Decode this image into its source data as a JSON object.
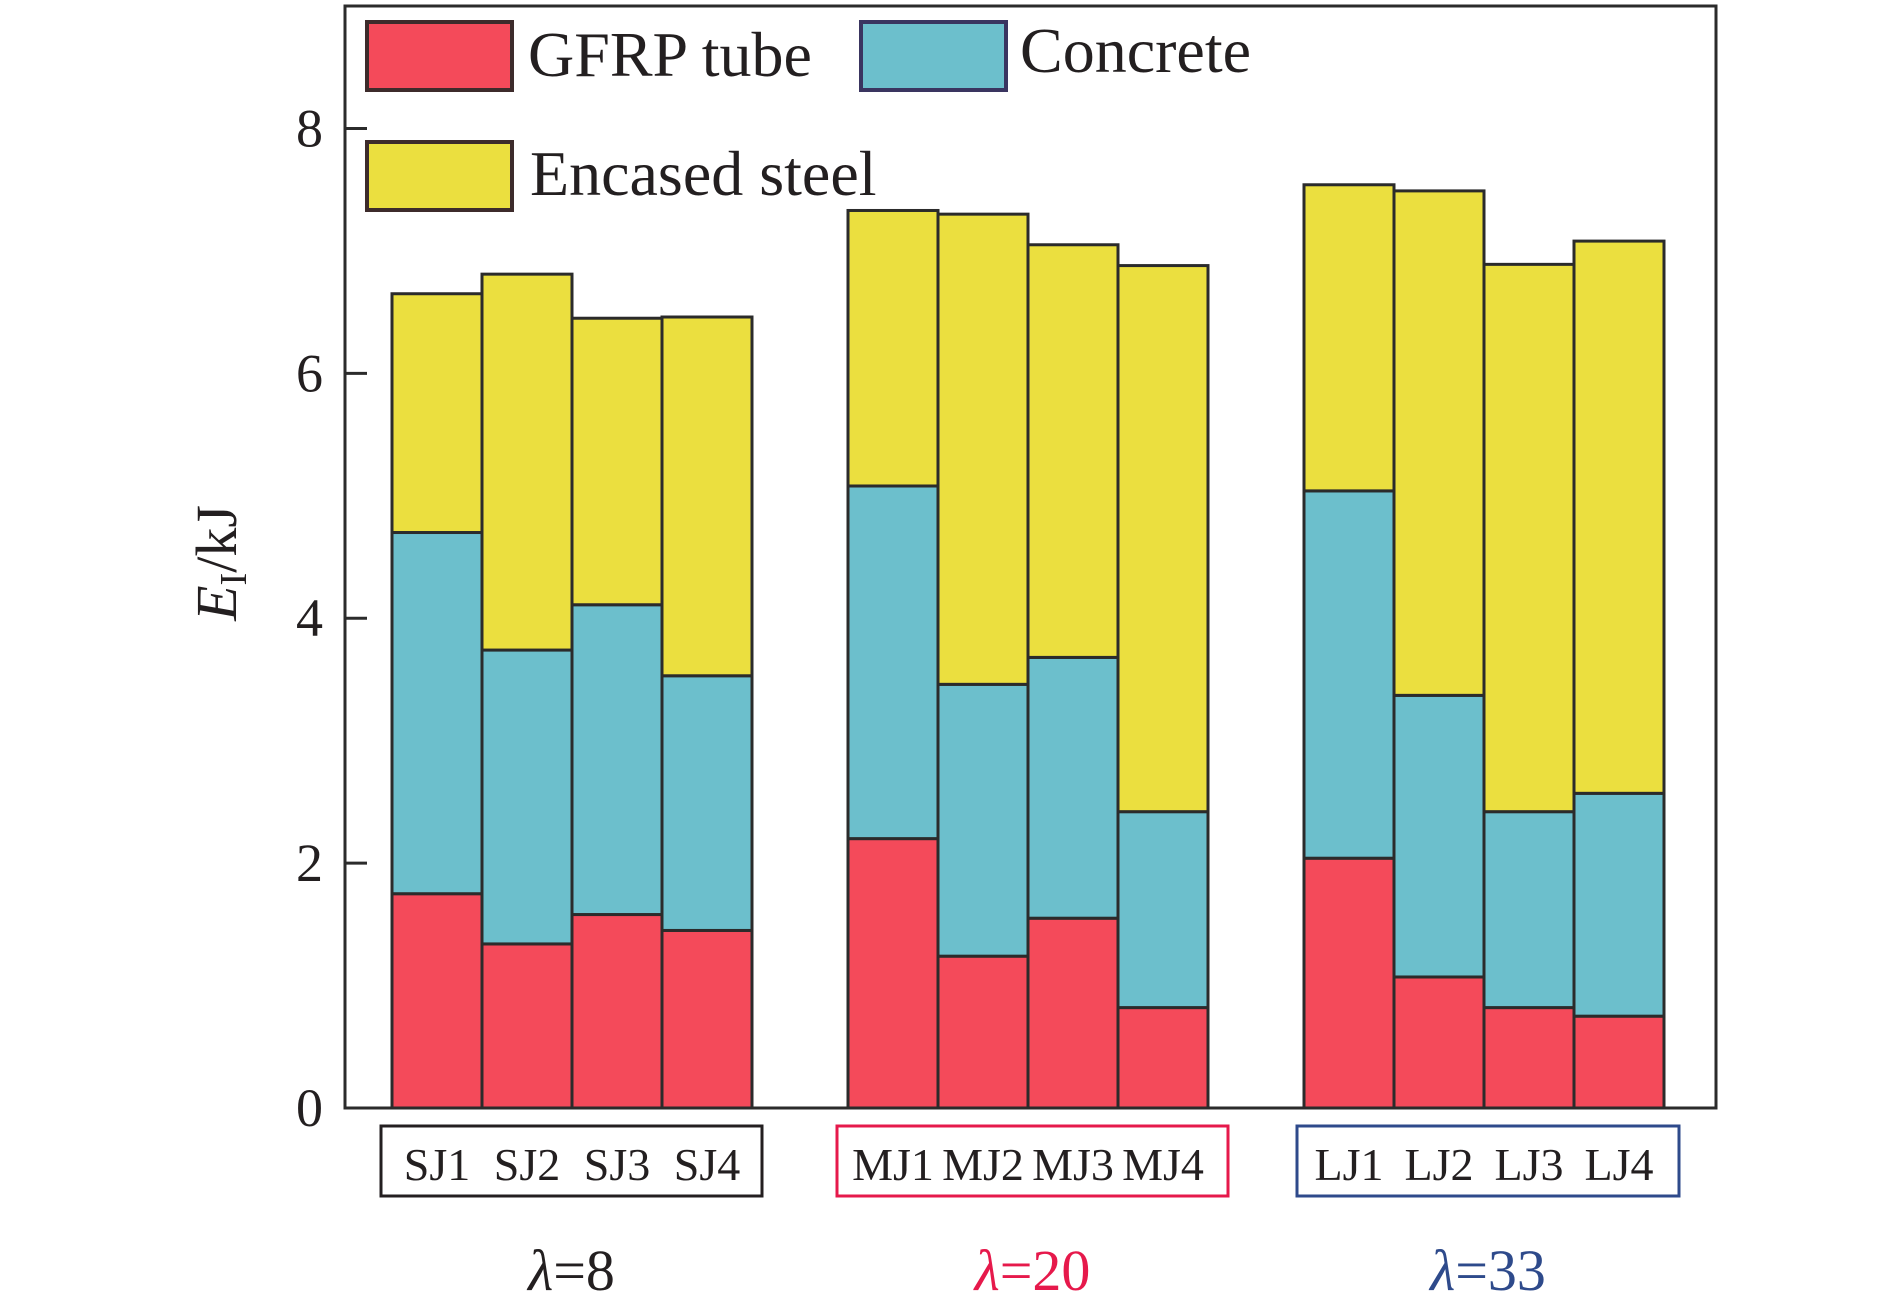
{
  "chart_data": {
    "type": "bar",
    "stacked": true,
    "ylabel": {
      "main": "E",
      "sub": "I",
      "unit": "/kJ"
    },
    "ylim": [
      0,
      9
    ],
    "yticks": [
      "0",
      "2",
      "4",
      "6",
      "8"
    ],
    "grid": false,
    "legend_position": "top-left",
    "categories": [
      "SJ1",
      "SJ2",
      "SJ3",
      "SJ4",
      "MJ1",
      "MJ2",
      "MJ3",
      "MJ4",
      "LJ1",
      "LJ2",
      "LJ3",
      "LJ4"
    ],
    "groups": [
      {
        "label_symbol": "λ",
        "label_value": "=8",
        "color": "#231f20",
        "categories": [
          "SJ1",
          "SJ2",
          "SJ3",
          "SJ4"
        ]
      },
      {
        "label_symbol": "λ",
        "label_value": "=20",
        "color": "#e6194b",
        "categories": [
          "MJ1",
          "MJ2",
          "MJ3",
          "MJ4"
        ]
      },
      {
        "label_symbol": "λ",
        "label_value": "=33",
        "color": "#2e4a8b",
        "categories": [
          "LJ1",
          "LJ2",
          "LJ3",
          "LJ4"
        ]
      }
    ],
    "series": [
      {
        "name": "GFRP tube",
        "color": "#f44a5a",
        "values": [
          1.75,
          1.34,
          1.58,
          1.45,
          2.2,
          1.24,
          1.55,
          0.82,
          2.04,
          1.07,
          0.82,
          0.75
        ]
      },
      {
        "name": "Concrete",
        "color": "#6cbfcc",
        "values": [
          2.95,
          2.4,
          2.53,
          2.08,
          2.88,
          2.22,
          2.13,
          1.6,
          3.0,
          2.3,
          1.6,
          1.82
        ]
      },
      {
        "name": "Encased steel",
        "color": "#ebdf3f",
        "values": [
          1.95,
          3.07,
          2.34,
          2.93,
          2.25,
          3.84,
          3.37,
          4.46,
          2.5,
          4.12,
          4.47,
          4.51
        ]
      }
    ]
  }
}
